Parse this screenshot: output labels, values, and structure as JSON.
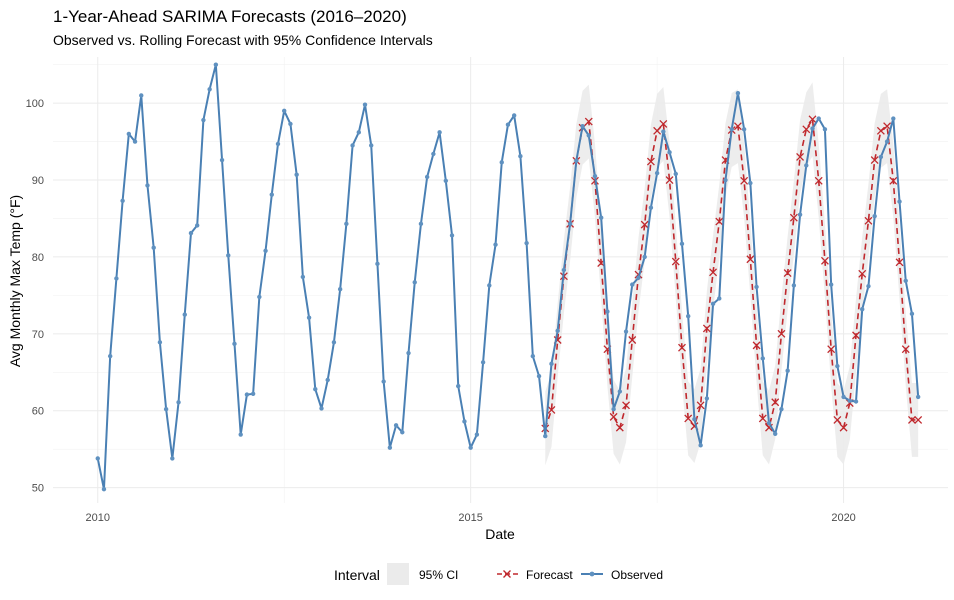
{
  "chart_data": {
    "type": "line",
    "title": "1-Year-Ahead SARIMA Forecasts (2016–2020)",
    "subtitle": "Observed vs. Rolling Forecast with 95% Confidence Intervals",
    "xlabel": "Date",
    "ylabel": "Avg Monthly Max Temp (°F)",
    "xlim": [
      2009.4,
      2021.4
    ],
    "ylim": [
      48,
      106
    ],
    "x_ticks": [
      2010,
      2015,
      2020
    ],
    "x_tick_labels": [
      "2010",
      "2015",
      "2020"
    ],
    "y_ticks": [
      50,
      60,
      70,
      80,
      90,
      100
    ],
    "y_tick_labels": [
      "50",
      "60",
      "70",
      "80",
      "90",
      "100"
    ],
    "grid": true,
    "legend_placement": "bottom",
    "legend": {
      "interval_title": "Interval",
      "interval_label": "95% CI",
      "forecast_label": "Forecast",
      "observed_label": "Observed"
    },
    "colors": {
      "observed": "#4a80b4",
      "forecast": "#c0282d",
      "ci_fill": "#ebebeb"
    },
    "observed": {
      "start": "2010-01",
      "frequency": "monthly",
      "values": [
        53.8,
        49.8,
        67.1,
        77.2,
        87.3,
        96.0,
        95.0,
        101.0,
        89.3,
        81.2,
        68.9,
        60.2,
        53.8,
        61.1,
        72.5,
        83.1,
        84.1,
        97.8,
        101.8,
        105.0,
        92.6,
        80.2,
        68.7,
        56.9,
        62.1,
        62.2,
        74.8,
        80.8,
        88.1,
        94.7,
        99.0,
        97.3,
        90.7,
        77.4,
        72.1,
        62.8,
        60.3,
        64.0,
        68.9,
        75.8,
        84.3,
        94.5,
        96.2,
        99.8,
        94.5,
        79.1,
        63.8,
        55.2,
        58.1,
        57.2,
        67.5,
        76.7,
        84.3,
        90.4,
        93.4,
        96.2,
        89.9,
        82.8,
        63.2,
        58.6,
        55.2,
        56.9,
        66.3,
        76.3,
        81.6,
        92.3,
        97.2,
        98.4,
        93.1,
        81.8,
        67.1,
        64.5,
        56.7,
        66.1,
        70.4,
        78.3,
        84.3,
        92.5,
        97.0,
        95.8,
        90.5,
        85.1,
        72.9,
        60.2,
        62.5,
        70.3,
        76.4,
        77.3,
        80.0,
        86.4,
        90.9,
        96.3,
        93.6,
        90.8,
        81.7,
        72.3,
        58.9,
        55.5,
        61.6,
        73.9,
        74.6,
        90.0,
        96.6,
        101.3,
        96.6,
        89.6,
        76.1,
        66.8,
        58.4,
        57.0,
        60.2,
        65.2,
        76.3,
        85.5,
        91.9,
        96.7,
        98.0,
        96.6,
        76.4,
        65.8,
        61.8,
        61.3,
        61.2,
        73.2,
        76.2,
        85.3,
        93.0,
        95.0,
        98.0,
        87.2,
        76.9,
        72.6,
        61.8
      ]
    },
    "forecast": {
      "start": "2016-01",
      "frequency": "monthly",
      "values": [
        57.7,
        60.1,
        69.2,
        77.5,
        84.3,
        92.5,
        96.8,
        97.6,
        89.9,
        79.2,
        68.0,
        59.2,
        57.8,
        60.7,
        69.2,
        77.7,
        84.2,
        92.4,
        96.4,
        97.3,
        90.0,
        79.4,
        68.2,
        59.0,
        58.0,
        60.7,
        70.7,
        78.0,
        84.6,
        92.6,
        96.5,
        97.0,
        89.9,
        79.7,
        68.5,
        59.0,
        57.8,
        61.1,
        70.0,
        77.9,
        85.1,
        93.0,
        96.6,
        97.9,
        89.9,
        79.5,
        68.0,
        58.8,
        57.8,
        61.0,
        69.8,
        77.8,
        84.7,
        92.6,
        96.4,
        97.0,
        89.9,
        79.3,
        68.0,
        58.8,
        58.8
      ],
      "ci_half_width": 4.8
    }
  }
}
